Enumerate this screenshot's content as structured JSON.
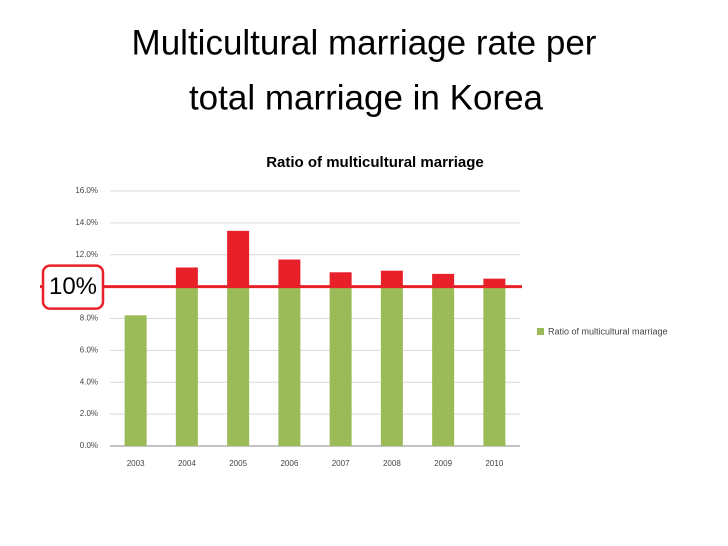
{
  "slide": {
    "title_lines": [
      "Multicultural marriage rate per",
      "total marriage in Korea"
    ]
  },
  "chart_data": {
    "type": "bar",
    "title": "Ratio of multicultural marriage",
    "categories": [
      "2003",
      "2004",
      "2005",
      "2006",
      "2007",
      "2008",
      "2009",
      "2010"
    ],
    "series": [
      {
        "name": "Ratio of multicultural marriage",
        "color": "#9bbb59",
        "values": [
          8.2,
          11.2,
          13.5,
          11.7,
          10.9,
          11.0,
          10.8,
          10.5
        ]
      }
    ],
    "threshold": {
      "value": 10,
      "label": "10%",
      "color": "#e8202a"
    },
    "ylim": [
      0,
      16
    ],
    "yticks": [
      {
        "value": 0,
        "label": "0.0%"
      },
      {
        "value": 2,
        "label": "2.0%"
      },
      {
        "value": 4,
        "label": "4.0%"
      },
      {
        "value": 6,
        "label": "6.0%"
      },
      {
        "value": 8,
        "label": "8.0%"
      },
      {
        "value": 10,
        "label": "10.0%"
      },
      {
        "value": 12,
        "label": "12.0%"
      },
      {
        "value": 14,
        "label": "14.0%"
      },
      {
        "value": 16,
        "label": "16.0%"
      }
    ],
    "grid": true,
    "legend": "right"
  }
}
